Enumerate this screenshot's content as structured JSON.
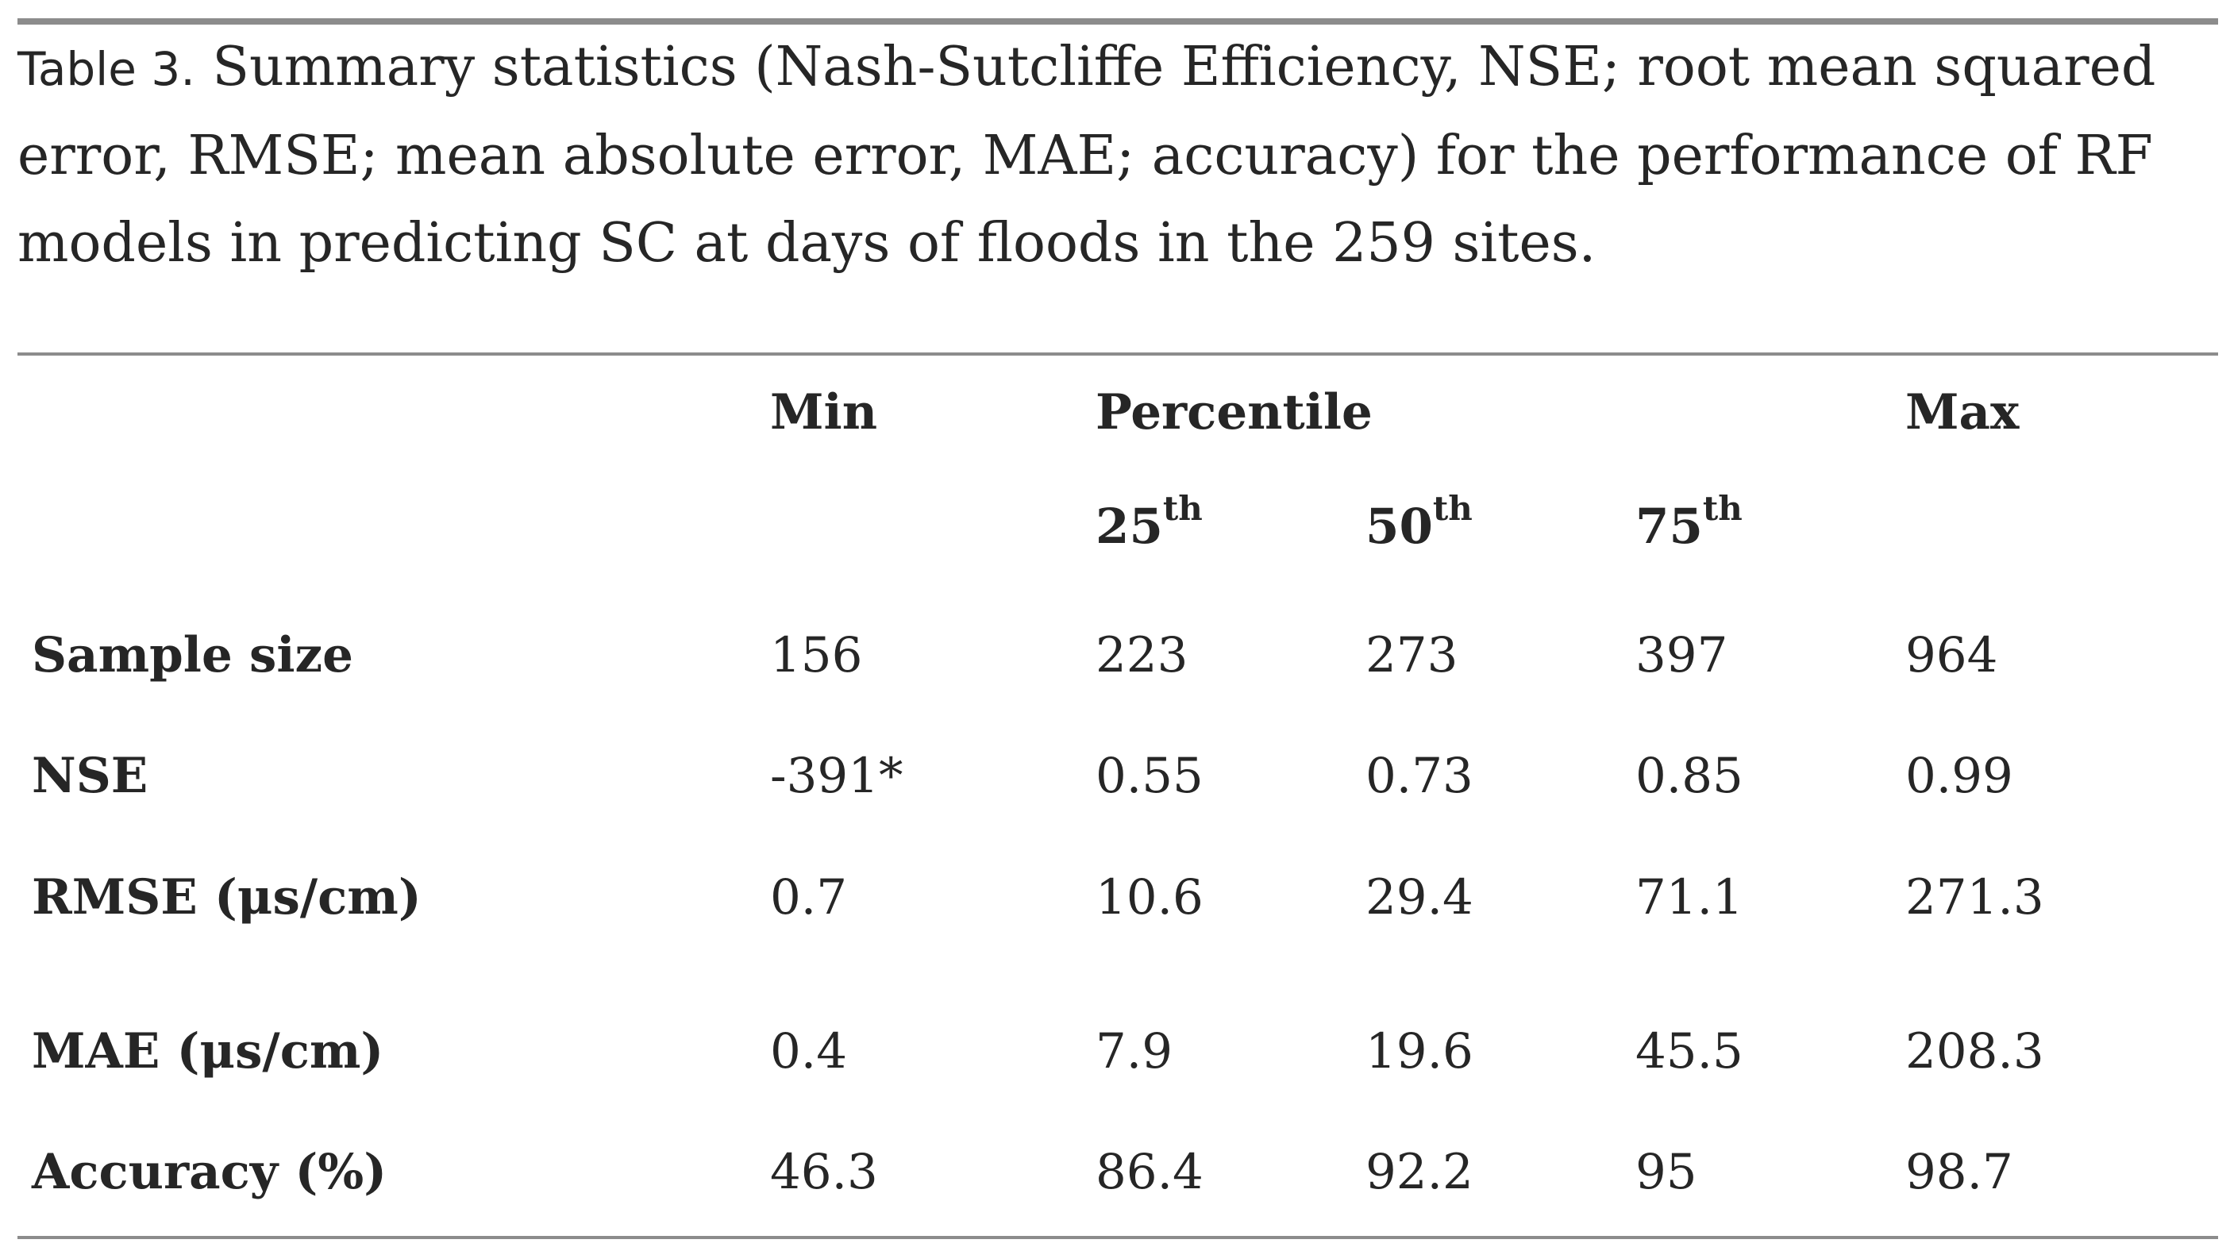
{
  "caption": {
    "table_tag": "Table 3.",
    "text": "Summary statistics (Nash-Sutcliffe Efficiency, NSE; root mean squared error, RMSE; mean absolute error, MAE; accuracy) for the performance of RF models in predicting SC at days of floods in the 259 sites."
  },
  "table": {
    "header": {
      "min": "Min",
      "percentile": "Percentile",
      "max": "Max",
      "p25": "25",
      "p50": "50",
      "p75": "75",
      "ordinal_suffix": "th"
    },
    "rows": [
      {
        "label": "Sample size",
        "min": "156",
        "p25": "223",
        "p50": "273",
        "p75": "397",
        "max": "964"
      },
      {
        "label": "NSE",
        "min": "-391*",
        "p25": "0.55",
        "p50": "0.73",
        "p75": "0.85",
        "max": "0.99"
      },
      {
        "label": "RMSE (μs/cm)",
        "min": "0.7",
        "p25": "10.6",
        "p50": "29.4",
        "p75": "71.1",
        "max": "271.3"
      },
      {
        "label": "MAE (μs/cm)",
        "min": "0.4",
        "p25": "7.9",
        "p50": "19.6",
        "p75": "45.5",
        "max": "208.3"
      },
      {
        "label": "Accuracy (%)",
        "min": "46.3",
        "p25": "86.4",
        "p50": "92.2",
        "p75": "95",
        "max": "98.7"
      }
    ]
  }
}
